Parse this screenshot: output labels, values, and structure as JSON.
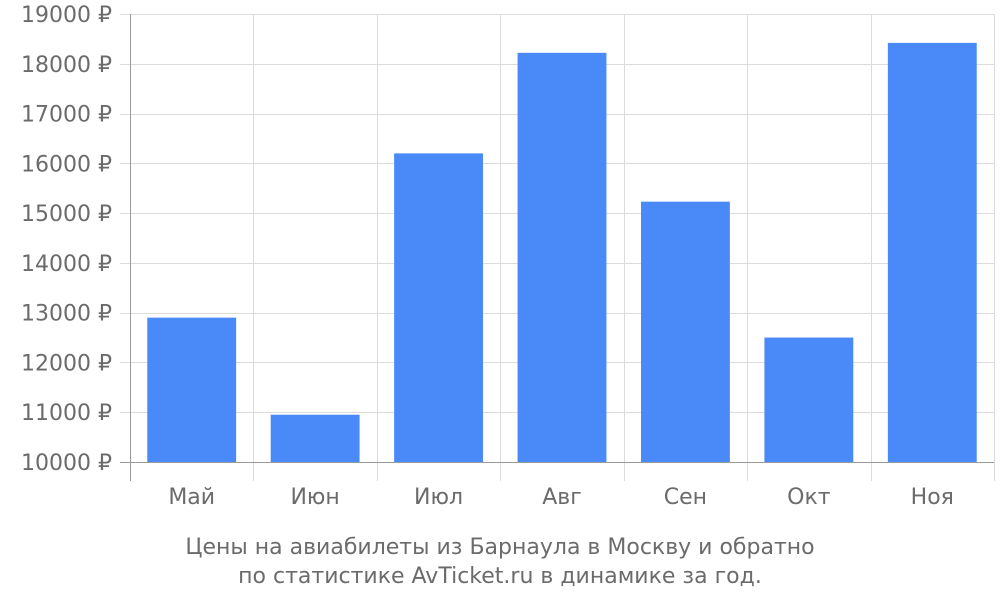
{
  "chart_data": {
    "type": "bar",
    "categories": [
      "Май",
      "Июн",
      "Июл",
      "Авг",
      "Сен",
      "Окт",
      "Ноя"
    ],
    "values": [
      12900,
      10950,
      16200,
      18220,
      15230,
      12500,
      18420
    ],
    "ylim": [
      10000,
      19000
    ],
    "yticks": [
      10000,
      11000,
      12000,
      13000,
      14000,
      15000,
      16000,
      17000,
      18000,
      19000
    ],
    "ytick_suffix": " ₽",
    "grid": true,
    "bar_color": "#4a89f8",
    "caption": [
      "Цены на авиабилеты из Барнаула в Москву и обратно",
      "по статистике AvTicket.ru в динамике за год."
    ]
  }
}
